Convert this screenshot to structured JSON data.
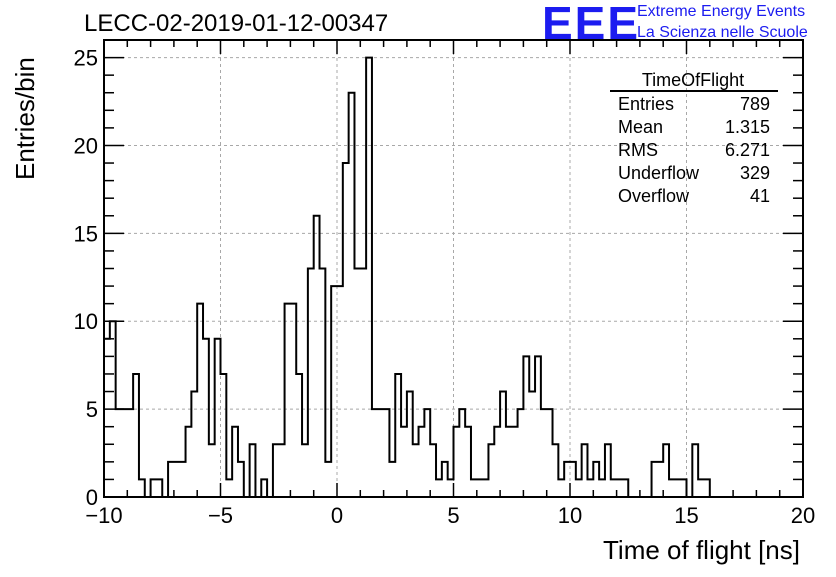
{
  "title": "LECC-02-2019-01-12-00347",
  "logo": {
    "mark": "EEE",
    "line1": "Extreme Energy Events",
    "line2": "La Scienza nelle Scuole",
    "color": "#1c1cf0"
  },
  "stats": {
    "name": "TimeOfFlight",
    "rows": [
      {
        "label": "Entries",
        "value": "789"
      },
      {
        "label": "Mean",
        "value": "1.315"
      },
      {
        "label": "RMS",
        "value": "6.271"
      },
      {
        "label": "Underflow",
        "value": "329"
      },
      {
        "label": "Overflow",
        "value": "41"
      }
    ]
  },
  "chart_data": {
    "type": "bar",
    "style": "step-histogram",
    "title": "LECC-02-2019-01-12-00347",
    "xlabel": "Time of flight [ns]",
    "ylabel": "Entries/bin",
    "xlim": [
      -10,
      20
    ],
    "ylim": [
      0,
      26
    ],
    "bin_width": 0.25,
    "x_ticks": [
      -10,
      -5,
      0,
      5,
      10,
      15,
      20
    ],
    "x_tick_labels": [
      "−10",
      "−5",
      "0",
      "5",
      "10",
      "15",
      "20"
    ],
    "y_ticks": [
      0,
      5,
      10,
      15,
      20,
      25
    ],
    "y_tick_labels": [
      "0",
      "5",
      "10",
      "15",
      "20",
      "25"
    ],
    "grid": true,
    "values": [
      9,
      10,
      5,
      5,
      5,
      7,
      1,
      0,
      1,
      1,
      0,
      2,
      2,
      2,
      4,
      6,
      11,
      9,
      3,
      9,
      7,
      1,
      4,
      2,
      0,
      3,
      0,
      1,
      0,
      3,
      3,
      11,
      11,
      7,
      3,
      13,
      16,
      13,
      2,
      12,
      12,
      19,
      23,
      13,
      13,
      25,
      5,
      5,
      5,
      2,
      7,
      4,
      6,
      3,
      4,
      5,
      3,
      1,
      2,
      1,
      4,
      5,
      4,
      1,
      1,
      1,
      3,
      4,
      6,
      4,
      4,
      5,
      8,
      6,
      8,
      5,
      5,
      3,
      1,
      2,
      2,
      1,
      3,
      1,
      2,
      1,
      3,
      1,
      1,
      1,
      0,
      0,
      0,
      0,
      2,
      2,
      3,
      1,
      1,
      1,
      0,
      3,
      1,
      1
    ]
  }
}
